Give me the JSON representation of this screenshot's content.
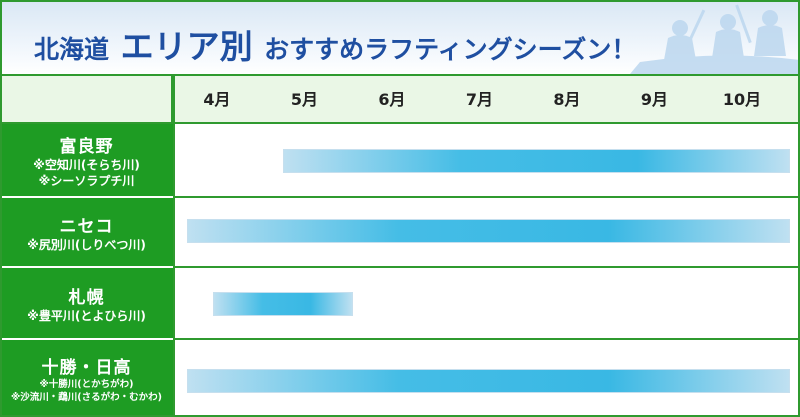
{
  "title": {
    "prefix": "北海道",
    "emphasis": "エリア別",
    "suffix": "おすすめラフティングシーズン！"
  },
  "months": [
    "4月",
    "5月",
    "6月",
    "7月",
    "8月",
    "9月",
    "10月"
  ],
  "areas": [
    {
      "name": "富良野",
      "rivers": [
        "※空知川(そらち川)",
        "※シーソラプチ川"
      ],
      "season_start": 5.1,
      "season_end": 10.9
    },
    {
      "name": "ニセコ",
      "rivers": [
        "※尻別川(しりべつ川)"
      ],
      "season_start": 4.0,
      "season_end": 10.9
    },
    {
      "name": "札幌",
      "rivers": [
        "※豊平川(とよひら川)"
      ],
      "season_start": 4.3,
      "season_end": 5.9
    },
    {
      "name": "十勝・日高",
      "rivers": [
        "※十勝川(とかちがわ)",
        "※沙流川・鵡川(さるがわ・むかわ)"
      ],
      "season_start": 4.0,
      "season_end": 10.9
    }
  ],
  "colors": {
    "grid_green": "#2f9a2f",
    "label_green": "#1e9c23",
    "bar_blue": "#39b8e4",
    "bar_light": "#bfe0f1",
    "title_blue": "#1f4fa1"
  }
}
